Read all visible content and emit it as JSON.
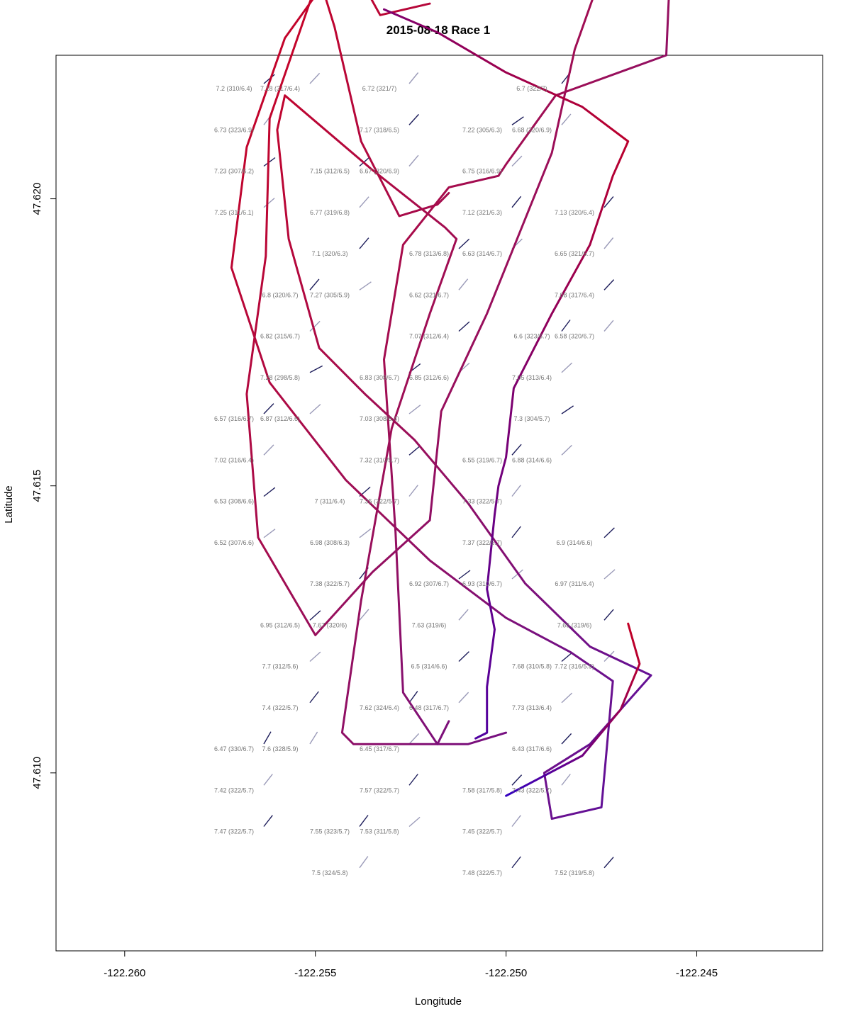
{
  "chart_data": {
    "type": "line",
    "title": "2015-08-18 Race 1",
    "xlabel": "Longitude",
    "ylabel": "Latitude",
    "xlim": [
      -122.2618,
      -122.2417
    ],
    "ylim": [
      47.6069,
      47.6225
    ],
    "x_ticks": [
      -122.26,
      -122.255,
      -122.25,
      -122.245
    ],
    "x_tick_labels": [
      "-122.260",
      "-122.255",
      "-122.250",
      "-122.245"
    ],
    "y_ticks": [
      47.61,
      47.615,
      47.62
    ],
    "y_tick_labels": [
      "47.610",
      "47.615",
      "47.620"
    ],
    "grid": false,
    "legend": "none",
    "colors": {
      "speed_low": "#cc0022",
      "speed_high": "#2200cc",
      "wind_ticks": "#1c1c5a",
      "annotation": "#777777",
      "axis": "#000000"
    },
    "series": [
      {
        "values": [
          [
            -122.25,
            47.6107
          ],
          [
            -122.251,
            47.6105
          ],
          [
            -122.2525,
            47.6105
          ],
          [
            -122.254,
            47.6105
          ],
          [
            -122.2543,
            47.6107
          ],
          [
            -122.2538,
            47.613
          ],
          [
            -122.253,
            47.616
          ],
          [
            -122.252,
            47.618
          ],
          [
            -122.2513,
            47.6193
          ],
          [
            -122.2516,
            47.6195
          ],
          [
            -122.2535,
            47.6205
          ],
          [
            -122.2558,
            47.6218
          ],
          [
            -122.256,
            47.6212
          ],
          [
            -122.2557,
            47.6193
          ],
          [
            -122.2549,
            47.6174
          ],
          [
            -122.2537,
            47.6166
          ],
          [
            -122.2524,
            47.6158
          ],
          [
            -122.251,
            47.6147
          ],
          [
            -122.2495,
            47.6133
          ],
          [
            -122.2478,
            47.6122
          ],
          [
            -122.2462,
            47.6117
          ],
          [
            -122.2478,
            47.6105
          ],
          [
            -122.249,
            47.61
          ],
          [
            -122.2488,
            47.6092
          ],
          [
            -122.2475,
            47.6094
          ],
          [
            -122.2472,
            47.6116
          ],
          [
            -122.2483,
            47.6121
          ],
          [
            -122.25,
            47.6127
          ],
          [
            -122.252,
            47.6137
          ],
          [
            -122.2542,
            47.6151
          ],
          [
            -122.2562,
            47.6168
          ],
          [
            -122.2572,
            47.6188
          ],
          [
            -122.2568,
            47.6209
          ],
          [
            -122.2558,
            47.6228
          ],
          [
            -122.2545,
            47.624
          ],
          [
            -122.2552,
            47.6245
          ],
          [
            -122.2545,
            47.623
          ],
          [
            -122.2538,
            47.621
          ],
          [
            -122.2528,
            47.6197
          ],
          [
            -122.2518,
            47.6199
          ],
          [
            -122.2515,
            47.6201
          ]
        ]
      },
      {
        "values": [
          [
            -122.2515,
            47.6109
          ],
          [
            -122.2518,
            47.6105
          ],
          [
            -122.2527,
            47.6114
          ],
          [
            -122.2529,
            47.6142
          ],
          [
            -122.2532,
            47.6172
          ],
          [
            -122.2527,
            47.6192
          ],
          [
            -122.2515,
            47.6202
          ],
          [
            -122.2502,
            47.6204
          ],
          [
            -122.25,
            47.6206
          ],
          [
            -122.2487,
            47.6218
          ],
          [
            -122.2458,
            47.6225
          ],
          [
            -122.2457,
            47.624
          ],
          [
            -122.2474,
            47.6241
          ],
          [
            -122.2482,
            47.6226
          ],
          [
            -122.2488,
            47.6208
          ],
          [
            -122.2505,
            47.618
          ],
          [
            -122.2517,
            47.6163
          ],
          [
            -122.252,
            47.6144
          ],
          [
            -122.2535,
            47.6135
          ],
          [
            -122.255,
            47.6124
          ],
          [
            -122.2565,
            47.6141
          ],
          [
            -122.2568,
            47.6166
          ],
          [
            -122.2563,
            47.619
          ],
          [
            -122.2562,
            47.6214
          ],
          [
            -122.255,
            47.6237
          ],
          [
            -122.2543,
            47.6244
          ],
          [
            -122.2533,
            47.6232
          ],
          [
            -122.252,
            47.6234
          ]
        ]
      },
      {
        "values": [
          [
            -122.2508,
            47.6106
          ],
          [
            -122.2505,
            47.6107
          ],
          [
            -122.2505,
            47.6115
          ],
          [
            -122.2503,
            47.6125
          ],
          [
            -122.2505,
            47.6132
          ],
          [
            -122.2503,
            47.6145
          ],
          [
            -122.2502,
            47.615
          ],
          [
            -122.25,
            47.6155
          ],
          [
            -122.2498,
            47.6167
          ],
          [
            -122.2488,
            47.618
          ],
          [
            -122.2478,
            47.6192
          ],
          [
            -122.2472,
            47.6204
          ],
          [
            -122.2468,
            47.621
          ],
          [
            -122.248,
            47.6216
          ],
          [
            -122.25,
            47.6222
          ],
          [
            -122.2518,
            47.6229
          ],
          [
            -122.2532,
            47.6233
          ]
        ]
      },
      {
        "values": [
          [
            -122.25,
            47.6096
          ],
          [
            -122.248,
            47.6103
          ],
          [
            -122.247,
            47.6111
          ],
          [
            -122.2465,
            47.6119
          ],
          [
            -122.2468,
            47.6126
          ]
        ]
      }
    ],
    "annotations": [
      "7.2 (310/6.4)",
      "6.72 (321/7)",
      "6.7 (322/7)",
      "7.18 (317/6.4)",
      "7.22 (305/6.3)",
      "6.73 (323/6.9)",
      "7.17 (318/6.5)",
      "6.68 (320/6.9)",
      "7.15 (312/6.5)",
      "6.75 (316/6.9)",
      "7.23 (307/6.2)",
      "6.67 (320/6.9)",
      "7.13 (320/6.4)",
      "6.77 (319/6.8)",
      "7.12 (321/6.3)",
      "7.25 (311/6.1)",
      "6.78 (313/6.8)",
      "6.65 (321/6.7)",
      "7.1 (320/6.3)",
      "6.63 (314/6.7)",
      "6.8 (320/6.7)",
      "6.62 (321/6.7)",
      "7.08 (317/6.4)",
      "7.27 (305/5.9)",
      "6.6 (323/6.7)",
      "6.82 (315/6.7)",
      "7.07 (312/6.4)",
      "6.58 (320/6.7)",
      "6.83 (308/6.7)",
      "7.05 (313/6.4)",
      "7.28 (298/5.8)",
      "6.85 (312/6.6)",
      "6.57 (316/6.7)",
      "7.03 (308/6.4)",
      "7.3 (304/5.7)",
      "6.87 (312/6.6)",
      "6.55 (319/6.7)",
      "7.02 (316/6.4)",
      "7.32 (310/5.7)",
      "6.88 (314/6.6)",
      "7 (311/6.4)",
      "7.33 (322/5.7)",
      "6.53 (308/6.6)",
      "7.35 (322/5.7)",
      "6.9 (314/6.6)",
      "6.98 (308/6.3)",
      "7.37 (322/5.7)",
      "6.52 (307/6.6)",
      "6.92 (307/6.7)",
      "6.97 (311/6.4)",
      "7.38 (322/5.7)",
      "6.93 (310/6.7)",
      "6.95 (312/6.5)",
      "7.63 (319/6)",
      "7.65 (319/6)",
      "7.67 (320/6)",
      "7.68 (310/5.8)",
      "7.7 (312/5.6)",
      "6.5 (314/6.6)",
      "7.72 (316/5.5)",
      "7.62 (324/6.4)",
      "7.73 (313/6.4)",
      "7.4 (322/5.7)",
      "6.48 (317/6.7)",
      "6.47 (330/6.7)",
      "6.45 (317/6.7)",
      "6.43 (317/6.6)",
      "7.6 (328/5.9)",
      "7.58 (317/5.8)",
      "7.42 (322/5.7)",
      "7.57 (322/5.7)",
      "7.43 (322/5.7)",
      "7.55 (323/5.7)",
      "7.45 (322/5.7)",
      "7.47 (322/5.7)",
      "7.53 (311/5.8)",
      "7.52 (319/5.8)",
      "7.5 (324/5.8)",
      "7.48 (322/5.7)"
    ]
  }
}
